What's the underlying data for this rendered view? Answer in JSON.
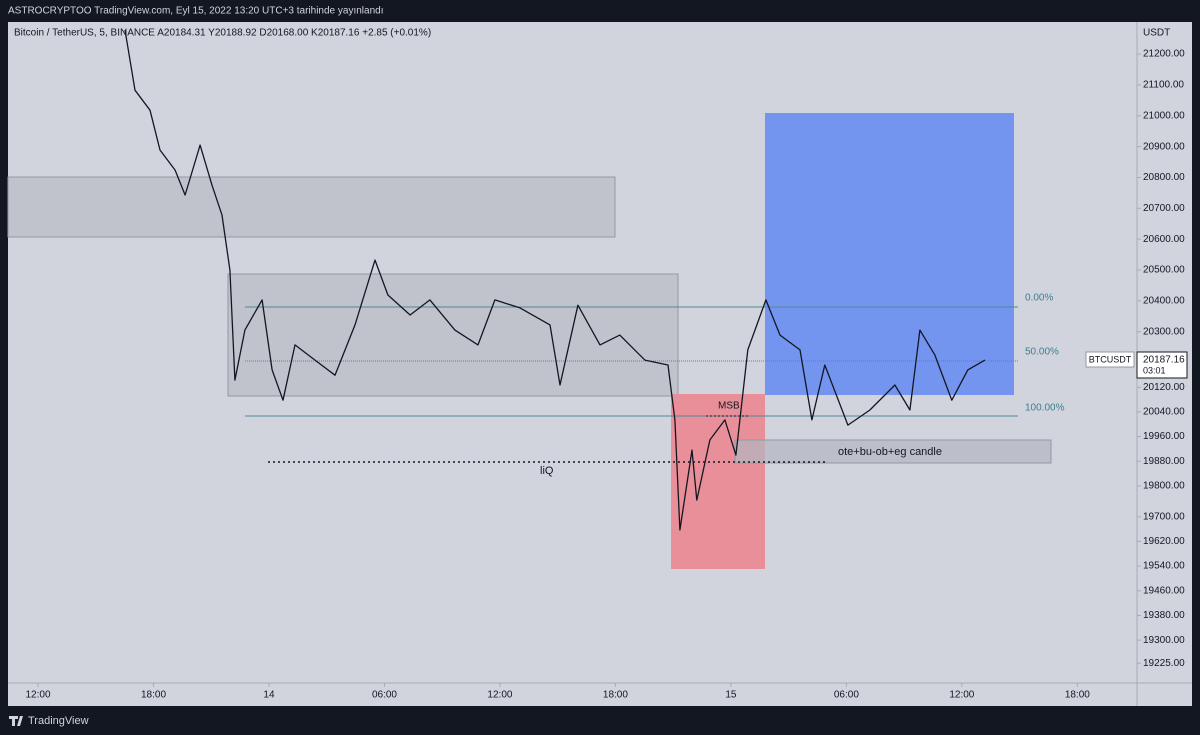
{
  "header": {
    "text": "ASTROCRYPTOO TradingView.com, Eyl 15, 2022 13:20 UTC+3 tarihinde yayınlandı"
  },
  "footer": {
    "brand": "TradingView"
  },
  "chart_data": {
    "type": "line",
    "title": "Bitcoin / TetherUS, 5, BINANCE  A20184.31  Y20188.92  D20168.00  K20187.16  +2.85 (+0.01%)",
    "y_axis_unit": "USDT",
    "x": [
      16.52,
      17.04,
      17.82,
      18.34,
      19.12,
      19.64,
      20.42,
      21.04,
      21.56,
      21.97,
      22.23,
      22.75,
      23.64,
      24.16,
      24.73,
      25.35,
      26.39,
      27.43,
      28.47,
      29.51,
      30.18,
      31.33,
      32.36,
      33.66,
      34.86,
      35.74,
      37.04,
      38.6,
      39.12,
      40.05,
      41.2,
      42.23,
      43.53,
      44.73,
      45.09,
      45.35,
      45.98,
      46.23,
      46.91,
      47.69,
      48.26,
      48.88,
      49.82,
      50.55,
      51.59,
      52.21,
      52.88,
      54.08,
      55.22,
      56.52,
      57.3,
      57.82,
      58.6,
      59.48,
      60.31,
      61.2
    ],
    "series": [
      {
        "name": "BTCUSDT",
        "color": "#131722",
        "values": [
          21278,
          21083,
          21018,
          20889,
          20824,
          20743,
          20905,
          20775,
          20678,
          20500,
          20143,
          20305,
          20403,
          20176,
          20078,
          20257,
          20208,
          20159,
          20322,
          20532,
          20419,
          20354,
          20403,
          20305,
          20257,
          20403,
          20377,
          20322,
          20127,
          20386,
          20257,
          20289,
          20208,
          20192,
          20014,
          19657,
          19916,
          19754,
          19949,
          20014,
          19900,
          20241,
          20403,
          20289,
          20241,
          20014,
          20192,
          19997,
          20046,
          20127,
          20046,
          20305,
          20224,
          20078,
          20176,
          20208
        ]
      }
    ],
    "last_value": 20187.16,
    "countdown": "03:01",
    "annotations": [
      "0.00%",
      "50.00%",
      "100.00%",
      "MSB",
      "liQ",
      "ote+bu-ob+eg candle"
    ],
    "ylim": [
      19161,
      21304
    ],
    "yticks": [
      {
        "value": 21200,
        "label": "21200.00"
      },
      {
        "value": 21100,
        "label": "21100.00"
      },
      {
        "value": 21000,
        "label": "21000.00"
      },
      {
        "value": 20900,
        "label": "20900.00"
      },
      {
        "value": 20800,
        "label": "20800.00"
      },
      {
        "value": 20700,
        "label": "20700.00"
      },
      {
        "value": 20600,
        "label": "20600.00"
      },
      {
        "value": 20500,
        "label": "20500.00"
      },
      {
        "value": 20400,
        "label": "20400.00"
      },
      {
        "value": 20300,
        "label": "20300.00"
      },
      {
        "value": 20120,
        "label": "20120.00"
      },
      {
        "value": 20040,
        "label": "20040.00"
      },
      {
        "value": 19960,
        "label": "19960.00"
      },
      {
        "value": 19880,
        "label": "19880.00"
      },
      {
        "value": 19800,
        "label": "19800.00"
      },
      {
        "value": 19700,
        "label": "19700.00"
      },
      {
        "value": 19620,
        "label": "19620.00"
      },
      {
        "value": 19540,
        "label": "19540.00"
      },
      {
        "value": 19460,
        "label": "19460.00"
      },
      {
        "value": 19380,
        "label": "19380.00"
      },
      {
        "value": 19300,
        "label": "19300.00"
      },
      {
        "value": 19225,
        "label": "19225.00"
      }
    ],
    "xlim": [
      10.44,
      69.1
    ],
    "xticks": [
      {
        "value": 12,
        "label": "12:00"
      },
      {
        "value": 18,
        "label": "18:00"
      },
      {
        "value": 24,
        "label": "14"
      },
      {
        "value": 30,
        "label": "06:00"
      },
      {
        "value": 36,
        "label": "12:00"
      },
      {
        "value": 42,
        "label": "18:00"
      },
      {
        "value": 48,
        "label": "15"
      },
      {
        "value": 54,
        "label": "06:00"
      },
      {
        "value": 60,
        "label": "12:00"
      },
      {
        "value": 66,
        "label": "18:00"
      }
    ],
    "grid": false
  }
}
